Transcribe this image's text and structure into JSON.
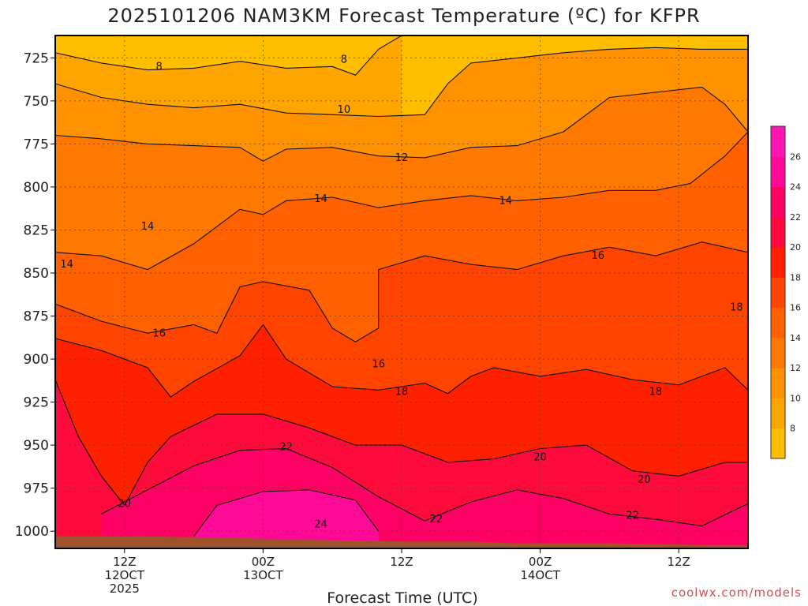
{
  "chart_data": {
    "type": "heatmap",
    "title": "2025101206 NAM3KM Forecast Temperature (ºC) for KFPR",
    "xlabel": "Forecast Time (UTC)",
    "credit": "coolwx.com/models",
    "y_axis": {
      "label": "",
      "ticks": [
        "725",
        "750",
        "775",
        "800",
        "825",
        "850",
        "875",
        "900",
        "925",
        "950",
        "975",
        "1000"
      ],
      "ylim": [
        1010,
        712
      ],
      "inverted": true
    },
    "x_axis": {
      "ticks": [
        {
          "hour": 6,
          "lines": [
            "12Z",
            "12OCT",
            "2025"
          ]
        },
        {
          "hour": 18,
          "lines": [
            "00Z",
            "13OCT"
          ]
        },
        {
          "hour": 30,
          "lines": [
            "12Z"
          ]
        },
        {
          "hour": 42,
          "lines": [
            "00Z",
            "14OCT"
          ]
        },
        {
          "hour": 54,
          "lines": [
            "12Z"
          ]
        }
      ],
      "xlim": [
        0,
        60
      ]
    },
    "grid": true,
    "colorbar": {
      "bands": [
        {
          "min": 6,
          "max": 8,
          "color": "#ffbf00"
        },
        {
          "min": 8,
          "max": 10,
          "color": "#ffa500"
        },
        {
          "min": 10,
          "max": 12,
          "color": "#ff9200"
        },
        {
          "min": 12,
          "max": 14,
          "color": "#ff7800"
        },
        {
          "min": 14,
          "max": 16,
          "color": "#ff6000"
        },
        {
          "min": 16,
          "max": 18,
          "color": "#ff4300"
        },
        {
          "min": 18,
          "max": 20,
          "color": "#ff2000"
        },
        {
          "min": 20,
          "max": 22,
          "color": "#ff0a3c"
        },
        {
          "min": 22,
          "max": 24,
          "color": "#ff0064"
        },
        {
          "min": 24,
          "max": 26,
          "color": "#ff0a96"
        },
        {
          "min": 26,
          "max": 28,
          "color": "#ff14b4"
        }
      ],
      "tick_labels": [
        "8",
        "10",
        "12",
        "14",
        "16",
        "18",
        "20",
        "22",
        "24",
        "26"
      ]
    },
    "contour_levels": [
      8,
      10,
      12,
      14,
      16,
      18,
      20,
      22,
      24
    ],
    "contour_isobars": {
      "8": [
        [
          0,
          722
        ],
        [
          4,
          728
        ],
        [
          8,
          732
        ],
        [
          12,
          731
        ],
        [
          16,
          727
        ],
        [
          20,
          731
        ],
        [
          24,
          730
        ],
        [
          26,
          735
        ],
        [
          28,
          720
        ],
        [
          30,
          712
        ]
      ],
      "10": [
        [
          0,
          740
        ],
        [
          4,
          748
        ],
        [
          8,
          752
        ],
        [
          12,
          754
        ],
        [
          16,
          752
        ],
        [
          20,
          757
        ],
        [
          24,
          758
        ],
        [
          28,
          759
        ],
        [
          32,
          758
        ],
        [
          34,
          740
        ],
        [
          36,
          728
        ],
        [
          40,
          725
        ],
        [
          44,
          722
        ],
        [
          48,
          720
        ],
        [
          52,
          719
        ],
        [
          56,
          720
        ],
        [
          60,
          720
        ]
      ],
      "12": [
        [
          0,
          770
        ],
        [
          4,
          772
        ],
        [
          8,
          775
        ],
        [
          12,
          776
        ],
        [
          16,
          777
        ],
        [
          18,
          785
        ],
        [
          20,
          778
        ],
        [
          24,
          777
        ],
        [
          28,
          782
        ],
        [
          32,
          783
        ],
        [
          36,
          777
        ],
        [
          40,
          776
        ],
        [
          44,
          768
        ],
        [
          48,
          748
        ],
        [
          52,
          745
        ],
        [
          56,
          742
        ],
        [
          58,
          752
        ],
        [
          60,
          768
        ]
      ],
      "14": [
        [
          0,
          838
        ],
        [
          4,
          840
        ],
        [
          8,
          848
        ],
        [
          12,
          833
        ],
        [
          16,
          813
        ],
        [
          18,
          816
        ],
        [
          20,
          808
        ],
        [
          24,
          806
        ],
        [
          28,
          812
        ],
        [
          32,
          808
        ],
        [
          36,
          805
        ],
        [
          40,
          808
        ],
        [
          44,
          806
        ],
        [
          48,
          802
        ],
        [
          52,
          802
        ],
        [
          55,
          798
        ],
        [
          58,
          782
        ],
        [
          60,
          768
        ]
      ],
      "16": [
        [
          0,
          868
        ],
        [
          4,
          878
        ],
        [
          8,
          885
        ],
        [
          12,
          880
        ],
        [
          14,
          885
        ],
        [
          16,
          858
        ],
        [
          18,
          855
        ],
        [
          22,
          860
        ],
        [
          24,
          882
        ],
        [
          26,
          890
        ],
        [
          28,
          882
        ],
        [
          28,
          848
        ],
        [
          32,
          840
        ],
        [
          36,
          845
        ],
        [
          40,
          848
        ],
        [
          44,
          840
        ],
        [
          48,
          835
        ],
        [
          52,
          840
        ],
        [
          56,
          832
        ],
        [
          60,
          838
        ]
      ],
      "18": [
        [
          0,
          888
        ],
        [
          4,
          895
        ],
        [
          8,
          905
        ],
        [
          10,
          922
        ],
        [
          12,
          913
        ],
        [
          16,
          898
        ],
        [
          18,
          880
        ],
        [
          20,
          900
        ],
        [
          24,
          916
        ],
        [
          28,
          918
        ],
        [
          32,
          914
        ],
        [
          34,
          920
        ],
        [
          36,
          910
        ],
        [
          38,
          905
        ],
        [
          42,
          910
        ],
        [
          46,
          906
        ],
        [
          50,
          912
        ],
        [
          54,
          915
        ],
        [
          58,
          905
        ],
        [
          60,
          918
        ]
      ],
      "20": [
        [
          0,
          912
        ],
        [
          2,
          945
        ],
        [
          4,
          968
        ],
        [
          6,
          985
        ],
        [
          8,
          960
        ],
        [
          10,
          945
        ],
        [
          14,
          932
        ],
        [
          18,
          932
        ],
        [
          22,
          940
        ],
        [
          26,
          950
        ],
        [
          30,
          950
        ],
        [
          34,
          960
        ],
        [
          38,
          958
        ],
        [
          42,
          952
        ],
        [
          46,
          950
        ],
        [
          50,
          965
        ],
        [
          54,
          968
        ],
        [
          58,
          960
        ],
        [
          60,
          960
        ]
      ],
      "22": [
        [
          4,
          990
        ],
        [
          8,
          976
        ],
        [
          12,
          962
        ],
        [
          16,
          953
        ],
        [
          20,
          952
        ],
        [
          24,
          963
        ],
        [
          28,
          980
        ],
        [
          32,
          994
        ],
        [
          36,
          983
        ],
        [
          40,
          976
        ],
        [
          44,
          981
        ],
        [
          48,
          990
        ],
        [
          52,
          993
        ],
        [
          56,
          997
        ],
        [
          60,
          984
        ]
      ],
      "24": [
        [
          12,
          1003
        ],
        [
          14,
          985
        ],
        [
          18,
          977
        ],
        [
          22,
          976
        ],
        [
          26,
          982
        ],
        [
          28,
          1000
        ]
      ]
    },
    "contour_labels": [
      {
        "text": "8",
        "x": 9,
        "y": 730
      },
      {
        "text": "8",
        "x": 25,
        "y": 726
      },
      {
        "text": "10",
        "x": 25,
        "y": 755
      },
      {
        "text": "12",
        "x": 30,
        "y": 783
      },
      {
        "text": "14",
        "x": 23,
        "y": 807
      },
      {
        "text": "14",
        "x": 8,
        "y": 823
      },
      {
        "text": "14",
        "x": 1,
        "y": 845
      },
      {
        "text": "14",
        "x": 39,
        "y": 808
      },
      {
        "text": "16",
        "x": 9,
        "y": 885
      },
      {
        "text": "16",
        "x": 28,
        "y": 903
      },
      {
        "text": "16",
        "x": 47,
        "y": 840
      },
      {
        "text": "18",
        "x": 59,
        "y": 870
      },
      {
        "text": "18",
        "x": 30,
        "y": 919
      },
      {
        "text": "18",
        "x": 52,
        "y": 919
      },
      {
        "text": "20",
        "x": 6,
        "y": 984
      },
      {
        "text": "20",
        "x": 42,
        "y": 957
      },
      {
        "text": "20",
        "x": 51,
        "y": 970
      },
      {
        "text": "22",
        "x": 20,
        "y": 951
      },
      {
        "text": "22",
        "x": 33,
        "y": 993
      },
      {
        "text": "22",
        "x": 50,
        "y": 991
      },
      {
        "text": "24",
        "x": 23,
        "y": 996
      }
    ],
    "ground_pressure": [
      [
        0,
        1003
      ],
      [
        8,
        1003
      ],
      [
        16,
        1004
      ],
      [
        22,
        1005
      ],
      [
        30,
        1006
      ],
      [
        36,
        1006
      ],
      [
        40,
        1007
      ],
      [
        48,
        1007
      ],
      [
        56,
        1008
      ],
      [
        60,
        1008
      ]
    ]
  }
}
